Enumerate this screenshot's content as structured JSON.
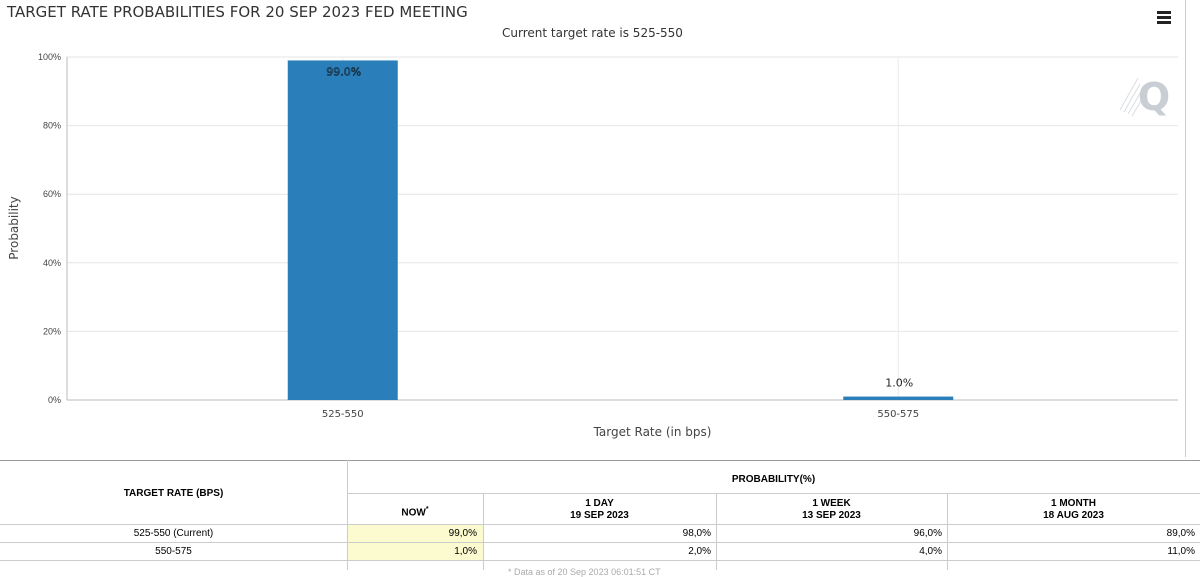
{
  "header": {
    "title": "TARGET RATE PROBABILITIES FOR 20 SEP 2023 FED MEETING",
    "subtitle": "Current target rate is 525-550"
  },
  "icons": {
    "menu": "hamburger-menu-icon",
    "logo": "quikstrike-q-logo"
  },
  "chart_data": {
    "type": "bar",
    "categories": [
      "525-550",
      "550-575"
    ],
    "values": [
      99.0,
      1.0
    ],
    "data_labels": [
      "99.0%",
      "1.0%"
    ],
    "xlabel": "Target Rate (in bps)",
    "ylabel": "Probability",
    "ylim": [
      0,
      100
    ],
    "yticks": [
      0,
      20,
      40,
      60,
      80,
      100
    ],
    "ytick_labels": [
      "0%",
      "20%",
      "40%",
      "60%",
      "80%",
      "100%"
    ],
    "grid": true,
    "legend": "none",
    "bar_color": "#2a7fba"
  },
  "table": {
    "target_rate_header": "TARGET RATE (BPS)",
    "probability_header": "PROBABILITY(%)",
    "columns": [
      {
        "label": "NOW",
        "sup": "*",
        "date": ""
      },
      {
        "label": "1 DAY",
        "date": "19 SEP 2023"
      },
      {
        "label": "1 WEEK",
        "date": "13 SEP 2023"
      },
      {
        "label": "1 MONTH",
        "date": "18 AUG 2023"
      }
    ],
    "rows": [
      {
        "rate": "525-550 (Current)",
        "values": [
          "99,0%",
          "98,0%",
          "96,0%",
          "89,0%"
        ]
      },
      {
        "rate": "550-575",
        "values": [
          "1,0%",
          "2,0%",
          "4,0%",
          "11,0%"
        ]
      }
    ],
    "footnote": "* Data as of 20 Sep 2023 06:01:51 CT"
  }
}
